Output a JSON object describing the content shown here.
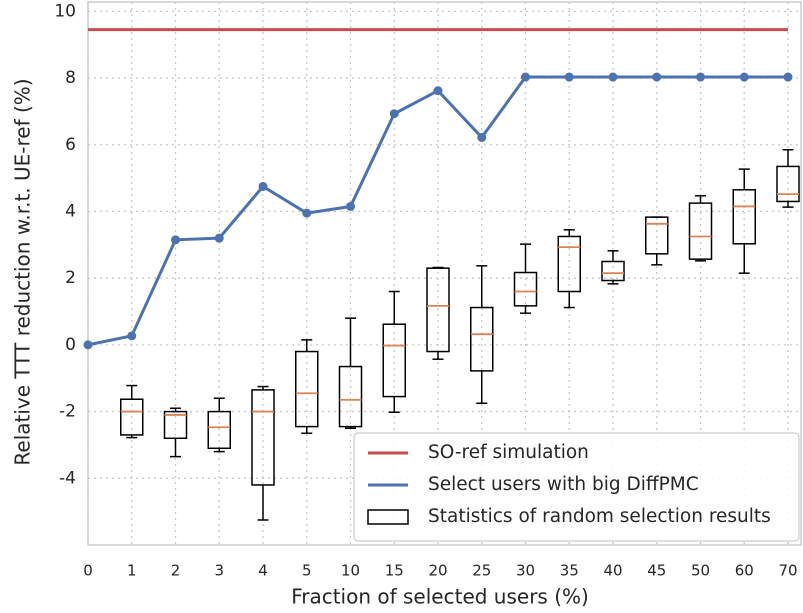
{
  "chart_data": {
    "type": "line_box",
    "xlabel": "Fraction of selected users (%)",
    "ylabel": "Relative TTT reduction w.r.t. UE-ref (%)",
    "categories": [
      "0",
      "1",
      "2",
      "3",
      "4",
      "5",
      "10",
      "15",
      "20",
      "25",
      "30",
      "35",
      "40",
      "45",
      "50",
      "60",
      "70"
    ],
    "ylim": [
      -6,
      10.28
    ],
    "yticks": [
      -4,
      -2,
      0,
      2,
      4,
      6,
      8,
      10
    ],
    "grid": true,
    "legend": "lower right",
    "series": [
      {
        "name": "SO-ref simulation",
        "kind": "line",
        "markers": false,
        "color": "#c44e52",
        "values": [
          9.45,
          9.45,
          9.45,
          9.45,
          9.45,
          9.45,
          9.45,
          9.45,
          9.45,
          9.45,
          9.45,
          9.45,
          9.45,
          9.45,
          9.45,
          9.45,
          9.45
        ]
      },
      {
        "name": "Select users with big DiffPMC",
        "kind": "line",
        "markers": true,
        "color": "#4c72b0",
        "values": [
          0,
          0.27,
          3.15,
          3.2,
          4.75,
          3.95,
          4.15,
          6.93,
          7.62,
          6.22,
          8.03,
          8.03,
          8.03,
          8.03,
          8.03,
          8.03,
          8.03
        ]
      },
      {
        "name": "Statistics of random selection results",
        "kind": "box",
        "color": "#000000",
        "median_color": "#dd8452",
        "values": [
          null,
          {
            "whislo": -2.78,
            "q1": -2.7,
            "med": -2.0,
            "q3": -1.63,
            "whishi": -1.22
          },
          {
            "whislo": -3.35,
            "q1": -2.8,
            "med": -2.1,
            "q3": -2.0,
            "whishi": -1.9
          },
          {
            "whislo": -3.2,
            "q1": -3.1,
            "med": -2.47,
            "q3": -2.0,
            "whishi": -1.6
          },
          {
            "whislo": -5.25,
            "q1": -4.2,
            "med": -2.0,
            "q3": -1.35,
            "whishi": -1.25
          },
          {
            "whislo": -2.65,
            "q1": -2.45,
            "med": -1.45,
            "q3": -0.2,
            "whishi": 0.15
          },
          {
            "whislo": -2.5,
            "q1": -2.45,
            "med": -1.65,
            "q3": -0.65,
            "whishi": 0.8
          },
          {
            "whislo": -2.02,
            "q1": -1.55,
            "med": -0.02,
            "q3": 0.62,
            "whishi": 1.6
          },
          {
            "whislo": -0.43,
            "q1": -0.2,
            "med": 1.17,
            "q3": 2.3,
            "whishi": 2.32
          },
          {
            "whislo": -1.75,
            "q1": -0.78,
            "med": 0.32,
            "q3": 1.12,
            "whishi": 2.37
          },
          {
            "whislo": 0.95,
            "q1": 1.17,
            "med": 1.6,
            "q3": 2.17,
            "whishi": 3.02
          },
          {
            "whislo": 1.12,
            "q1": 1.6,
            "med": 2.93,
            "q3": 3.25,
            "whishi": 3.45
          },
          {
            "whislo": 1.83,
            "q1": 1.93,
            "med": 2.15,
            "q3": 2.5,
            "whishi": 2.82
          },
          {
            "whislo": 2.4,
            "q1": 2.73,
            "med": 3.63,
            "q3": 3.83,
            "whishi": 3.83
          },
          {
            "whislo": 2.52,
            "q1": 2.57,
            "med": 3.25,
            "q3": 4.25,
            "whishi": 4.47
          },
          {
            "whislo": 2.15,
            "q1": 3.03,
            "med": 4.15,
            "q3": 4.65,
            "whishi": 5.27
          },
          {
            "whislo": 4.13,
            "q1": 4.3,
            "med": 4.52,
            "q3": 5.35,
            "whishi": 5.85
          }
        ]
      }
    ]
  }
}
